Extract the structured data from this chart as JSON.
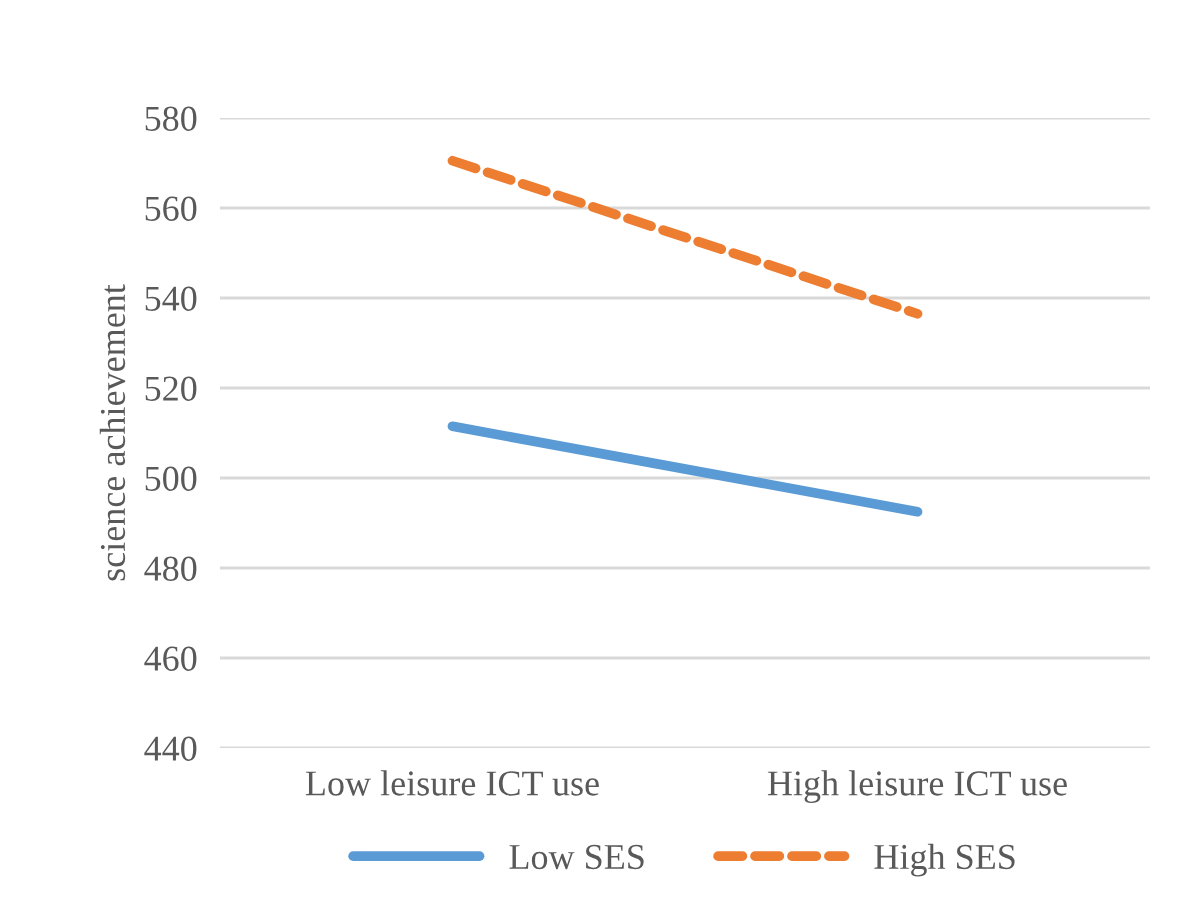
{
  "chart_data": {
    "type": "line",
    "ylabel": "science achievement",
    "categories": [
      "Low leisure ICT use",
      "High leisure ICT use"
    ],
    "series": [
      {
        "name": "Low SES",
        "color": "#5b9bd5",
        "values": [
          511.5,
          492.5
        ],
        "line_style": "solid"
      },
      {
        "name": "High SES",
        "color": "#ed7d31",
        "values": [
          570.5,
          536.5
        ],
        "line_style": "dashed"
      }
    ],
    "ylim": [
      440,
      580
    ],
    "yticks": [
      440,
      460,
      480,
      500,
      520,
      540,
      560,
      580
    ],
    "grid": "y",
    "legend": "bottom",
    "marker": "none"
  }
}
